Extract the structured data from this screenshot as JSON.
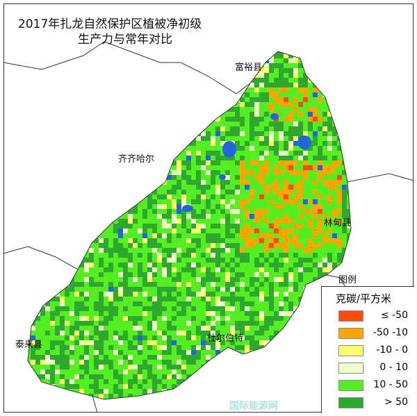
{
  "title": {
    "line1": "2017年扎龙自然保护区植被净初级",
    "line2": "生产力与常年对比"
  },
  "places": {
    "fuyu": "富裕县",
    "qiqihar": "齐齐哈尔",
    "lindian": "林甸县",
    "duerbote": "杜尔伯特",
    "tailai": "泰来县",
    "legend_pointer": "图例"
  },
  "legend": {
    "unit": "克碳/平方米",
    "items": [
      {
        "label": "≤ -50",
        "color": "#ff4a10"
      },
      {
        "label": "-50 -10",
        "color": "#ffa500"
      },
      {
        "label": "-10 - 0",
        "color": "#ffff70"
      },
      {
        "label": "0 - 10",
        "color": "#eeffc8"
      },
      {
        "label": "10 - 50",
        "color": "#55ee22"
      },
      {
        "label": "> 50",
        "color": "#2ea82e"
      }
    ]
  },
  "colors": {
    "water": "#2266dd"
  },
  "watermark": "国际能源网"
}
